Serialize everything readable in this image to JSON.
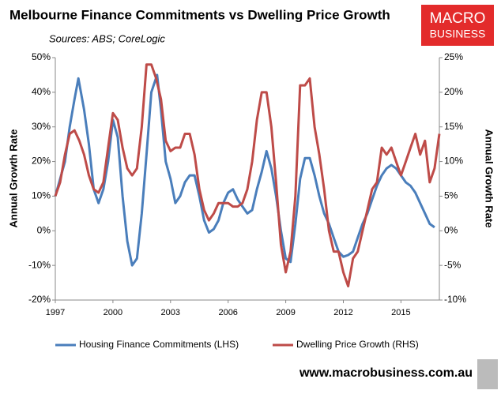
{
  "chart_data": {
    "type": "line",
    "title": "Melbourne Finance Commitments vs Dwelling Price Growth",
    "subtitle": "Sources: ABS; CoreLogic",
    "ylabel": "Annual Growth Rate",
    "y2label": "Annual Growth Rate",
    "footer": "www.macrobusiness.com.au",
    "logo": [
      "MACRO",
      "BUSINESS"
    ],
    "legend": "bottom",
    "xlim": [
      1997,
      2017
    ],
    "xticks": [
      1997,
      2000,
      2003,
      2006,
      2009,
      2012,
      2015
    ],
    "ylim": [
      -20,
      50
    ],
    "yticks": [
      {
        "value": -20,
        "label": "-20%"
      },
      {
        "value": -10,
        "label": "-10%"
      },
      {
        "value": 0,
        "label": "0%"
      },
      {
        "value": 10,
        "label": "10%"
      },
      {
        "value": 20,
        "label": "20%"
      },
      {
        "value": 30,
        "label": "30%"
      },
      {
        "value": 40,
        "label": "40%"
      },
      {
        "value": 50,
        "label": "50%"
      }
    ],
    "y2lim": [
      -10,
      25
    ],
    "y2ticks": [
      {
        "value": -10,
        "label": "-10%"
      },
      {
        "value": -5,
        "label": "-5%"
      },
      {
        "value": 0,
        "label": "0%"
      },
      {
        "value": 5,
        "label": "5%"
      },
      {
        "value": 10,
        "label": "10%"
      },
      {
        "value": 15,
        "label": "15%"
      },
      {
        "value": 20,
        "label": "20%"
      },
      {
        "value": 25,
        "label": "25%"
      }
    ],
    "series": [
      {
        "name": "Housing Finance Commitments (LHS)",
        "color": "#4a7ebb",
        "axis": "y",
        "x": [
          1997,
          1997.5,
          1997.75,
          1998,
          1998.2,
          1998.5,
          1998.75,
          1999,
          1999.25,
          1999.5,
          1999.75,
          2000,
          2000.25,
          2000.5,
          2000.75,
          2001,
          2001.25,
          2001.5,
          2001.75,
          2002,
          2002.3,
          2002.5,
          2002.75,
          2003,
          2003.25,
          2003.5,
          2003.75,
          2004,
          2004.25,
          2004.5,
          2004.75,
          2005,
          2005.25,
          2005.5,
          2005.75,
          2006,
          2006.25,
          2006.5,
          2006.75,
          2007,
          2007.25,
          2007.5,
          2007.75,
          2008,
          2008.25,
          2008.5,
          2008.75,
          2009,
          2009.25,
          2009.5,
          2009.75,
          2010,
          2010.25,
          2010.5,
          2010.75,
          2011,
          2011.25,
          2011.5,
          2011.75,
          2012,
          2012.25,
          2012.5,
          2012.75,
          2013,
          2013.25,
          2013.5,
          2013.75,
          2014,
          2014.25,
          2014.5,
          2014.75,
          2015,
          2015.25,
          2015.5,
          2015.75,
          2016,
          2016.25,
          2016.5,
          2016.75
        ],
        "values": [
          10,
          20,
          30,
          38,
          44,
          35,
          25,
          12,
          8,
          12,
          20,
          32,
          27,
          10,
          -3,
          -10,
          -8,
          5,
          22,
          40,
          45,
          35,
          20,
          15,
          8,
          10,
          14,
          16,
          16,
          10,
          3,
          -0.5,
          0.5,
          3,
          8,
          11,
          12,
          9,
          7,
          5,
          6,
          12,
          17,
          23,
          18,
          10,
          0,
          -8,
          -9,
          2,
          15,
          21,
          21,
          16,
          10,
          5,
          2,
          -2,
          -6,
          -7.5,
          -7,
          -6,
          -2,
          2,
          5,
          9,
          13,
          16,
          18,
          19,
          18,
          16,
          14,
          13,
          11,
          8,
          5,
          2,
          1
        ]
      },
      {
        "name": "Dwelling Price Growth (RHS)",
        "color": "#be4b48",
        "axis": "y2",
        "x": [
          1997,
          1997.25,
          1997.5,
          1997.75,
          1998,
          1998.25,
          1998.5,
          1998.75,
          1999,
          1999.25,
          1999.5,
          1999.75,
          2000,
          2000.25,
          2000.5,
          2000.75,
          2001,
          2001.25,
          2001.5,
          2001.75,
          2002,
          2002.25,
          2002.5,
          2002.75,
          2003,
          2003.25,
          2003.5,
          2003.75,
          2004,
          2004.25,
          2004.5,
          2004.75,
          2005,
          2005.25,
          2005.5,
          2005.75,
          2006,
          2006.25,
          2006.5,
          2006.75,
          2007,
          2007.25,
          2007.5,
          2007.75,
          2008,
          2008.25,
          2008.5,
          2008.75,
          2009,
          2009.25,
          2009.5,
          2009.75,
          2010,
          2010.25,
          2010.5,
          2010.75,
          2011,
          2011.25,
          2011.5,
          2011.75,
          2012,
          2012.25,
          2012.5,
          2012.75,
          2013,
          2013.25,
          2013.5,
          2013.75,
          2014,
          2014.25,
          2014.5,
          2014.75,
          2015,
          2015.25,
          2015.5,
          2015.75,
          2016,
          2016.25,
          2016.5,
          2016.75,
          2017
        ],
        "values": [
          5,
          7,
          11,
          14,
          14.5,
          13,
          11,
          8,
          6,
          5.5,
          7,
          12,
          17,
          16,
          12,
          9,
          8,
          9,
          15,
          24,
          24,
          22,
          19,
          13,
          11.5,
          12,
          12,
          14,
          14,
          11,
          6,
          3,
          1.5,
          2.5,
          4,
          4,
          4,
          3.5,
          3.5,
          4,
          6,
          10,
          16,
          20,
          20,
          15,
          7,
          -2,
          -6,
          -3,
          5,
          21,
          21,
          22,
          15,
          11,
          6,
          0,
          -3,
          -3,
          -6,
          -8,
          -4,
          -3,
          0,
          3,
          6,
          7,
          12,
          11,
          12,
          10,
          8,
          10,
          12,
          14,
          11,
          13,
          7,
          9,
          14
        ]
      }
    ]
  }
}
